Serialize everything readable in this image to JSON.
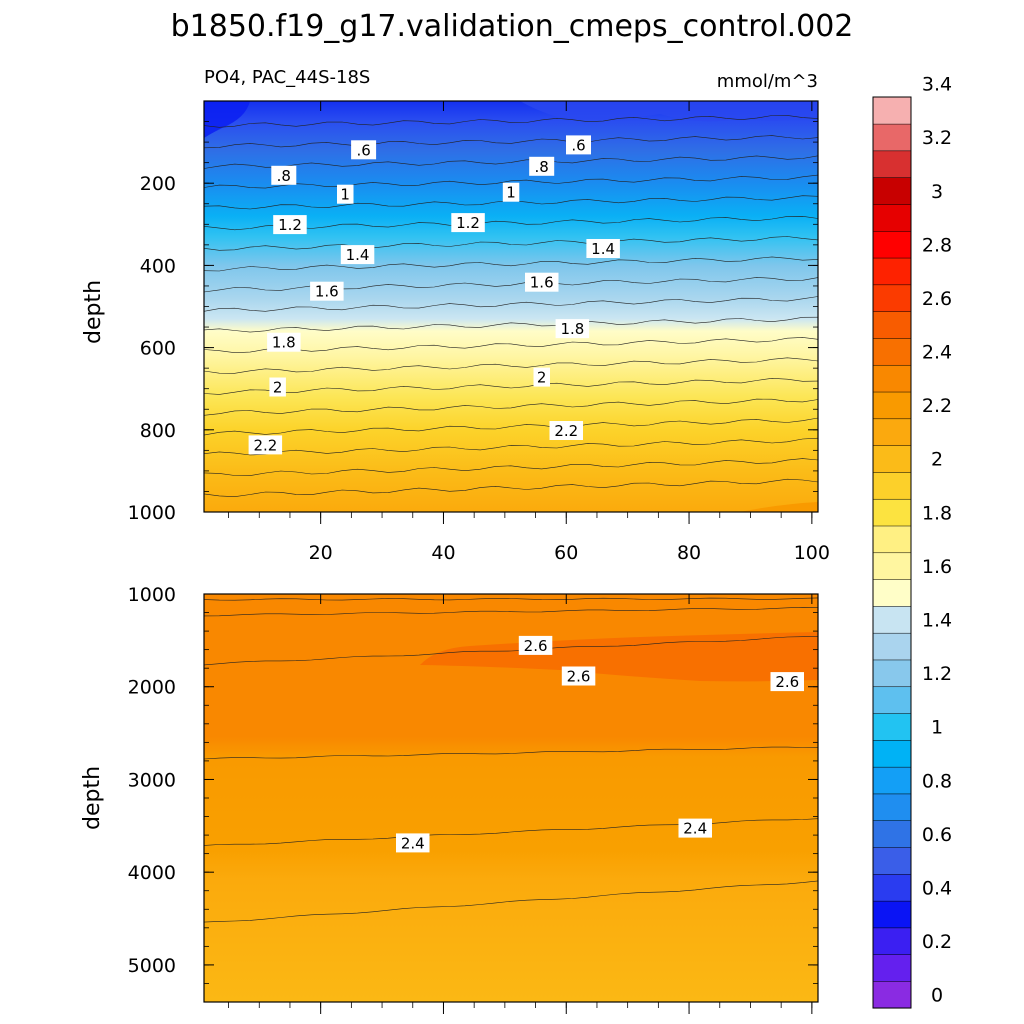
{
  "chart_data": {
    "type": "contour",
    "title": "b1850.f19_g17.validation_cmeps_control.002",
    "subtitle_left": "PO4, PAC_44S-18S",
    "units": "mmol/m^3",
    "colorbar": {
      "levels": [
        0,
        0.2,
        0.4,
        0.6,
        0.8,
        1,
        1.2,
        1.4,
        1.6,
        1.8,
        2,
        2.2,
        2.4,
        2.6,
        2.8,
        3,
        3.2,
        3.4
      ],
      "labels": [
        "0",
        "0.2",
        "0.4",
        "0.6",
        "0.8",
        "1",
        "1.2",
        "1.4",
        "1.6",
        "1.8",
        "2",
        "2.2",
        "2.4",
        "2.6",
        "2.8",
        "3",
        "3.2",
        "3.4"
      ],
      "colors": [
        "#8a2be2",
        "#6420ee",
        "#3b1ff2",
        "#0a14f5",
        "#2a3cf0",
        "#3a5ee8",
        "#2f73e6",
        "#1f8ef0",
        "#139ff6",
        "#00b2f5",
        "#22c3f2",
        "#5ec0ef",
        "#88c8ec",
        "#aad4ee",
        "#c8e4f2",
        "#fffec8",
        "#fff6a0",
        "#fff083",
        "#fce340",
        "#fcd02a",
        "#fbbb18",
        "#fba90e",
        "#f99a00",
        "#f98800",
        "#f87000",
        "#f85c00",
        "#fb3b00",
        "#fe2200",
        "#ff0000",
        "#e60000",
        "#c80000",
        "#d83030",
        "#e86868",
        "#f6b0b0"
      ]
    },
    "panels": [
      {
        "name": "upper",
        "ylabel": "depth",
        "ylim": [
          0,
          1000
        ],
        "yticks": [
          "200",
          "400",
          "600",
          "800",
          "1000"
        ],
        "xlim": [
          1,
          101
        ],
        "xticks": [
          "20",
          "40",
          "60",
          "80",
          "100"
        ],
        "contour_labels": [
          {
            "text": ".6",
            "x": 27,
            "y": 120
          },
          {
            "text": ".6",
            "x": 62,
            "y": 108
          },
          {
            "text": ".8",
            "x": 14,
            "y": 182
          },
          {
            "text": ".8",
            "x": 56,
            "y": 160
          },
          {
            "text": "1",
            "x": 24,
            "y": 228
          },
          {
            "text": "1",
            "x": 51,
            "y": 223
          },
          {
            "text": "1.2",
            "x": 15,
            "y": 302
          },
          {
            "text": "1.2",
            "x": 44,
            "y": 297
          },
          {
            "text": "1.4",
            "x": 26,
            "y": 375
          },
          {
            "text": "1.4",
            "x": 66,
            "y": 360
          },
          {
            "text": "1.6",
            "x": 21,
            "y": 464
          },
          {
            "text": "1.6",
            "x": 56,
            "y": 442
          },
          {
            "text": "1.8",
            "x": 14,
            "y": 588
          },
          {
            "text": "1.8",
            "x": 61,
            "y": 555
          },
          {
            "text": "2",
            "x": 13,
            "y": 697
          },
          {
            "text": "2",
            "x": 56,
            "y": 673
          },
          {
            "text": "2.2",
            "x": 11,
            "y": 838
          },
          {
            "text": "2.2",
            "x": 60,
            "y": 803
          }
        ]
      },
      {
        "name": "lower",
        "ylabel": "depth",
        "ylim": [
          1000,
          5400
        ],
        "yticks": [
          "1000",
          "2000",
          "3000",
          "4000",
          "5000"
        ],
        "xlim": [
          1,
          101
        ],
        "contour_labels": [
          {
            "text": "2.6",
            "x": 55,
            "y": 1560
          },
          {
            "text": "2.6",
            "x": 62,
            "y": 1890
          },
          {
            "text": "2.6",
            "x": 96,
            "y": 1950
          },
          {
            "text": "2.4",
            "x": 35,
            "y": 3690
          },
          {
            "text": "2.4",
            "x": 81,
            "y": 3530
          }
        ]
      }
    ]
  }
}
